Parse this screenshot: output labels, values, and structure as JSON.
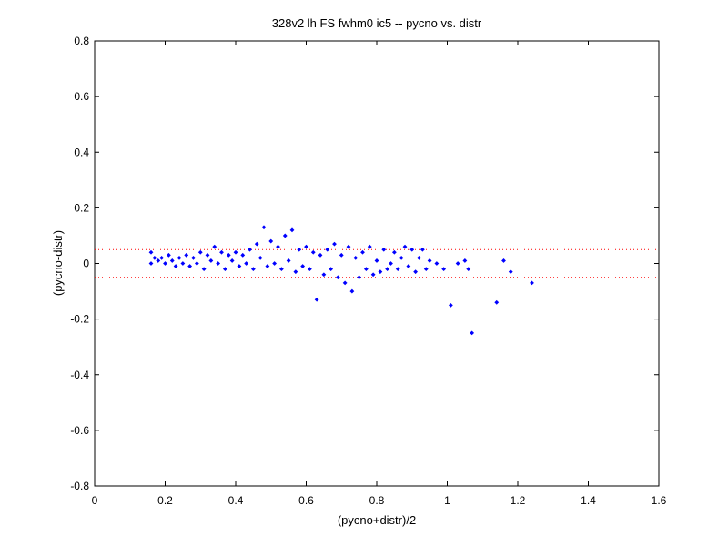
{
  "chart_data": {
    "type": "scatter",
    "title": "328v2 lh FS fwhm0 ic5 -- pycno vs. distr",
    "xlabel": "(pycno+distr)/2",
    "ylabel": "(pycno-distr)",
    "xlim": [
      0,
      1.6
    ],
    "ylim": [
      -0.8,
      0.8
    ],
    "xticks": [
      0,
      0.2,
      0.4,
      0.6,
      0.8,
      1,
      1.2,
      1.4,
      1.6
    ],
    "xtick_labels": [
      "0",
      "0.2",
      "0.4",
      "0.6",
      "0.8",
      "1",
      "1.2",
      "1.4",
      "1.6"
    ],
    "yticks": [
      -0.8,
      -0.6,
      -0.4,
      -0.2,
      0,
      0.2,
      0.4,
      0.6,
      0.8
    ],
    "ytick_labels": [
      "-0.8",
      "-0.6",
      "-0.4",
      "-0.2",
      "0",
      "0.2",
      "0.4",
      "0.6",
      "0.8"
    ],
    "grid": false,
    "marker_color": "#0000ff",
    "reference_line_color": "#ff0000",
    "reference_lines_y": [
      0.05,
      -0.05
    ],
    "series": [
      {
        "points": [
          [
            0.16,
            0.04
          ],
          [
            0.16,
            0.0
          ],
          [
            0.17,
            0.02
          ],
          [
            0.18,
            0.01
          ],
          [
            0.19,
            0.02
          ],
          [
            0.2,
            0.0
          ],
          [
            0.21,
            0.03
          ],
          [
            0.22,
            0.01
          ],
          [
            0.23,
            -0.01
          ],
          [
            0.24,
            0.02
          ],
          [
            0.25,
            0.0
          ],
          [
            0.26,
            0.03
          ],
          [
            0.27,
            -0.01
          ],
          [
            0.28,
            0.02
          ],
          [
            0.29,
            0.0
          ],
          [
            0.3,
            0.04
          ],
          [
            0.31,
            -0.02
          ],
          [
            0.32,
            0.03
          ],
          [
            0.33,
            0.01
          ],
          [
            0.34,
            0.06
          ],
          [
            0.35,
            0.0
          ],
          [
            0.36,
            0.04
          ],
          [
            0.37,
            -0.02
          ],
          [
            0.38,
            0.03
          ],
          [
            0.39,
            0.01
          ],
          [
            0.4,
            0.04
          ],
          [
            0.41,
            -0.01
          ],
          [
            0.42,
            0.03
          ],
          [
            0.43,
            0.0
          ],
          [
            0.44,
            0.05
          ],
          [
            0.45,
            -0.02
          ],
          [
            0.46,
            0.07
          ],
          [
            0.47,
            0.02
          ],
          [
            0.48,
            0.13
          ],
          [
            0.49,
            -0.01
          ],
          [
            0.5,
            0.08
          ],
          [
            0.51,
            0.0
          ],
          [
            0.52,
            0.06
          ],
          [
            0.53,
            -0.02
          ],
          [
            0.54,
            0.1
          ],
          [
            0.55,
            0.01
          ],
          [
            0.56,
            0.12
          ],
          [
            0.57,
            -0.03
          ],
          [
            0.58,
            0.05
          ],
          [
            0.59,
            -0.01
          ],
          [
            0.6,
            0.06
          ],
          [
            0.61,
            -0.02
          ],
          [
            0.62,
            0.04
          ],
          [
            0.63,
            -0.13
          ],
          [
            0.64,
            0.03
          ],
          [
            0.65,
            -0.04
          ],
          [
            0.66,
            0.05
          ],
          [
            0.67,
            -0.02
          ],
          [
            0.68,
            0.07
          ],
          [
            0.69,
            -0.05
          ],
          [
            0.7,
            0.03
          ],
          [
            0.71,
            -0.07
          ],
          [
            0.72,
            0.06
          ],
          [
            0.73,
            -0.1
          ],
          [
            0.74,
            0.02
          ],
          [
            0.75,
            -0.05
          ],
          [
            0.76,
            0.04
          ],
          [
            0.77,
            -0.02
          ],
          [
            0.78,
            0.06
          ],
          [
            0.79,
            -0.04
          ],
          [
            0.8,
            0.01
          ],
          [
            0.81,
            -0.03
          ],
          [
            0.82,
            0.05
          ],
          [
            0.83,
            -0.02
          ],
          [
            0.84,
            0.0
          ],
          [
            0.85,
            0.04
          ],
          [
            0.86,
            -0.02
          ],
          [
            0.87,
            0.02
          ],
          [
            0.88,
            0.06
          ],
          [
            0.89,
            -0.01
          ],
          [
            0.9,
            0.05
          ],
          [
            0.91,
            -0.03
          ],
          [
            0.92,
            0.02
          ],
          [
            0.93,
            0.05
          ],
          [
            0.94,
            -0.02
          ],
          [
            0.95,
            0.01
          ],
          [
            0.97,
            0.0
          ],
          [
            0.99,
            -0.02
          ],
          [
            1.01,
            -0.15
          ],
          [
            1.03,
            0.0
          ],
          [
            1.05,
            0.01
          ],
          [
            1.06,
            -0.02
          ],
          [
            1.07,
            -0.25
          ],
          [
            1.14,
            -0.14
          ],
          [
            1.16,
            0.01
          ],
          [
            1.18,
            -0.03
          ],
          [
            1.24,
            -0.07
          ]
        ]
      }
    ]
  }
}
